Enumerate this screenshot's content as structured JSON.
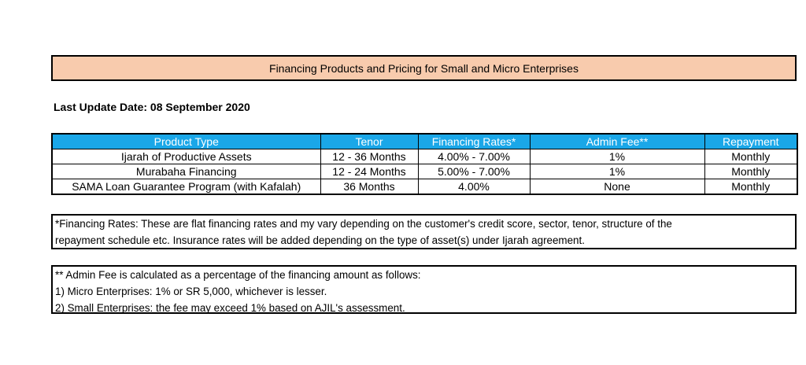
{
  "title": "Financing Products and Pricing for Small and Micro Enterprises",
  "last_update": "Last Update Date: 08 September 2020",
  "table": {
    "headers": [
      "Product Type",
      "Tenor",
      "Financing Rates*",
      "Admin Fee**",
      "Repayment"
    ],
    "rows": [
      [
        "Ijarah of Productive Assets",
        "12 - 36 Months",
        "4.00% - 7.00%",
        "1%",
        "Monthly"
      ],
      [
        "Murabaha Financing",
        "12 - 24 Months",
        "5.00% - 7.00%",
        "1%",
        "Monthly"
      ],
      [
        "SAMA Loan Guarantee Program (with Kafalah)",
        "36 Months",
        "4.00%",
        "None",
        "Monthly"
      ]
    ]
  },
  "note1": {
    "lines": [
      "*Financing Rates: These are flat financing rates and my vary depending on the customer's credit score, sector, tenor, structure of the",
      "repayment schedule etc. Insurance rates will be added depending on the type of asset(s) under Ijarah agreement."
    ]
  },
  "note2": {
    "lines": [
      "** Admin Fee is calculated as a percentage of the financing amount as follows:",
      "1) Micro Enterprises: 1% or SR 5,000, whichever is lesser.",
      "2) Small Enterprises: the fee may exceed 1% based on AJIL's assessment."
    ]
  },
  "colors": {
    "title_bg": "#f8cbad",
    "header_bg": "#1aa7e8",
    "header_text": "#ffffff"
  }
}
